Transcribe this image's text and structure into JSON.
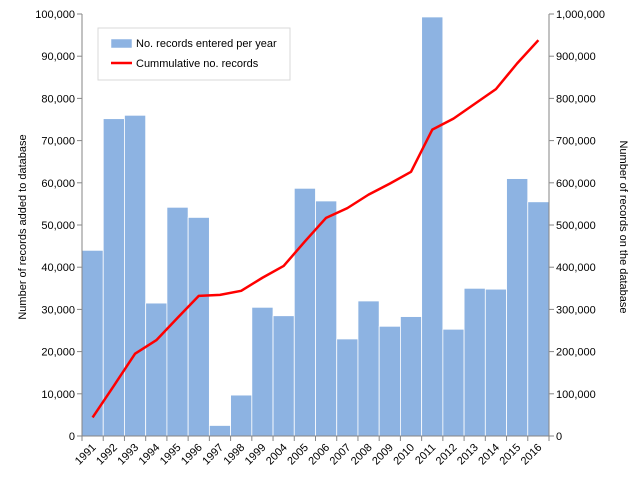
{
  "chart_data": {
    "type": "bar+line",
    "categories": [
      "1991",
      "1992",
      "1993",
      "1994",
      "1995",
      "1996",
      "1997",
      "1998",
      "1999",
      "2004",
      "2005",
      "2006",
      "2007",
      "2008",
      "2009",
      "2010",
      "2011",
      "2012",
      "2013",
      "2014",
      "2015",
      "2016"
    ],
    "series": [
      {
        "name": "No. records entered per year",
        "kind": "bar",
        "axis": "left",
        "color": "#8db3e2",
        "values": [
          44000,
          75200,
          76000,
          31500,
          54200,
          51800,
          2500,
          9700,
          30500,
          28500,
          58700,
          55700,
          23000,
          32000,
          26000,
          28300,
          99300,
          25300,
          35000,
          34800,
          61000,
          55500
        ]
      },
      {
        "name": "Cummulative no. records",
        "kind": "line",
        "axis": "right",
        "color": "#ff0000",
        "values": [
          44000,
          119000,
          195000,
          227000,
          280000,
          332000,
          334500,
          344000,
          375000,
          403000,
          461000,
          517000,
          540000,
          572000,
          598000,
          626000,
          726000,
          752000,
          787000,
          822000,
          883000,
          938000
        ]
      }
    ],
    "y_left": {
      "label": "Number of records added to database",
      "ylim": [
        0,
        100000
      ],
      "ticks": [
        "0",
        "10,000",
        "20,000",
        "30,000",
        "40,000",
        "50,000",
        "60,000",
        "70,000",
        "80,000",
        "90,000",
        "100,000"
      ]
    },
    "y_right": {
      "label": "Number of records on the database",
      "ylim": [
        0,
        1000000
      ],
      "ticks": [
        "0",
        "100,000",
        "200,000",
        "300,000",
        "400,000",
        "500,000",
        "600,000",
        "700,000",
        "800,000",
        "900,000",
        "1,000,000"
      ]
    },
    "legend": {
      "placement": "top-left",
      "bar_label": "No. records entered per year",
      "line_label": "Cummulative no. records"
    },
    "grid": false
  }
}
